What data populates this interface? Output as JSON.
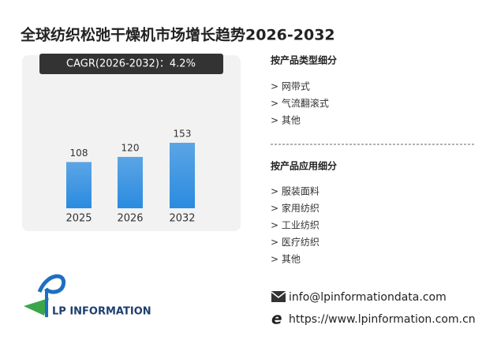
{
  "chart_data": {
    "type": "bar",
    "title": "全球纺织松弛干燥机市场增长趋势2026-2032",
    "banner": "CAGR(2026-2032)：4.2%",
    "categories": [
      "2025",
      "2026",
      "2032"
    ],
    "values": [
      108,
      120,
      153
    ],
    "color": "#2a8be0"
  },
  "segments": [
    {
      "heading": "按产品类型细分",
      "items": [
        "> 网带式",
        "> 气流翻滚式",
        "> 其他"
      ]
    },
    {
      "heading": "按产品应用细分",
      "items": [
        "> 服装面料",
        "> 家用纺织",
        "> 工业纺织",
        "> 医疗纺织",
        "> 其他"
      ]
    }
  ],
  "contact": {
    "email": "info@lpinformationdata.com",
    "website": "https://www.lpinformation.com.cn"
  },
  "logo": "LP INFORMATION"
}
